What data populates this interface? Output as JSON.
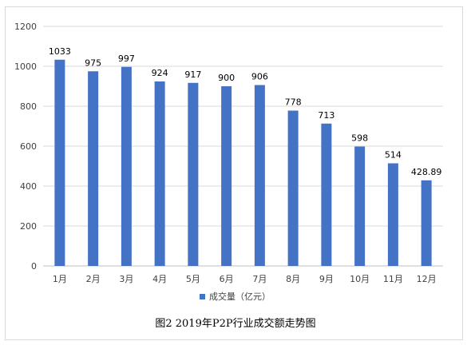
{
  "chart_data": {
    "type": "bar",
    "categories": [
      "1月",
      "2月",
      "3月",
      "4月",
      "5月",
      "6月",
      "7月",
      "8月",
      "9月",
      "10月",
      "11月",
      "12月"
    ],
    "series": [
      {
        "name": "成交量（亿元）",
        "values": [
          1033,
          975,
          997,
          924,
          917,
          900,
          906,
          778,
          713,
          598,
          514,
          428.89
        ]
      }
    ],
    "data_labels": [
      "1033",
      "975",
      "997",
      "924",
      "917",
      "900",
      "906",
      "778",
      "713",
      "598",
      "514",
      "428.89"
    ],
    "title": "",
    "xlabel": "",
    "ylabel": "",
    "ylim": [
      0,
      1200
    ],
    "yticks": [
      0,
      200,
      400,
      600,
      800,
      1000,
      1200
    ],
    "grid": true,
    "legend_position": "bottom",
    "bar_color": "#4472C4",
    "grid_color": "#d9d9d9"
  },
  "caption": "图2   2019年P2P行业成交额走势图"
}
